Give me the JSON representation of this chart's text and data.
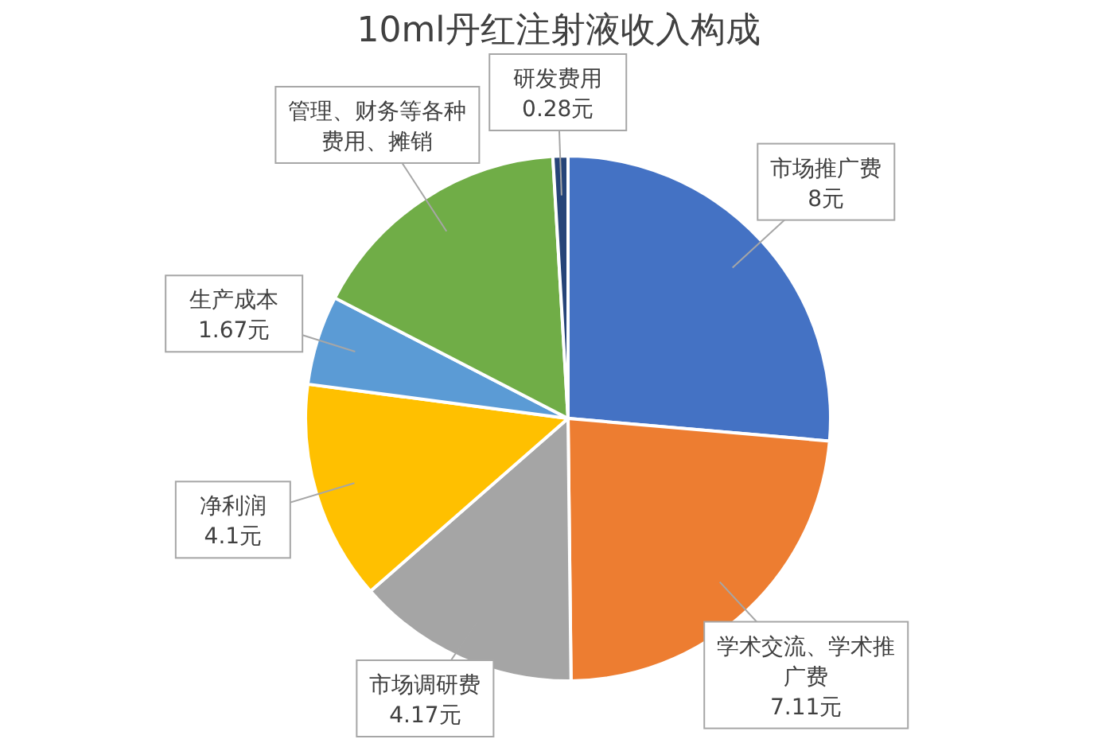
{
  "chart_data": {
    "type": "pie",
    "title": "10ml丹红注射液收入构成",
    "categories": [
      "市场推广费",
      "学术交流、学术推广费",
      "市场调研费",
      "净利润",
      "生产成本",
      "管理、财务等各种费用、摊销",
      "研发费用"
    ],
    "values": [
      8,
      7.11,
      4.17,
      4.1,
      1.67,
      5,
      0.28
    ],
    "value_labels": [
      "8元",
      "7.11元",
      "4.17元",
      "4.1元",
      "1.67元",
      null,
      "0.28元"
    ],
    "colors": [
      "#4472c4",
      "#ed7d31",
      "#a5a5a5",
      "#ffc000",
      "#5b9bd5",
      "#70ad47",
      "#264478"
    ],
    "legend": false
  }
}
